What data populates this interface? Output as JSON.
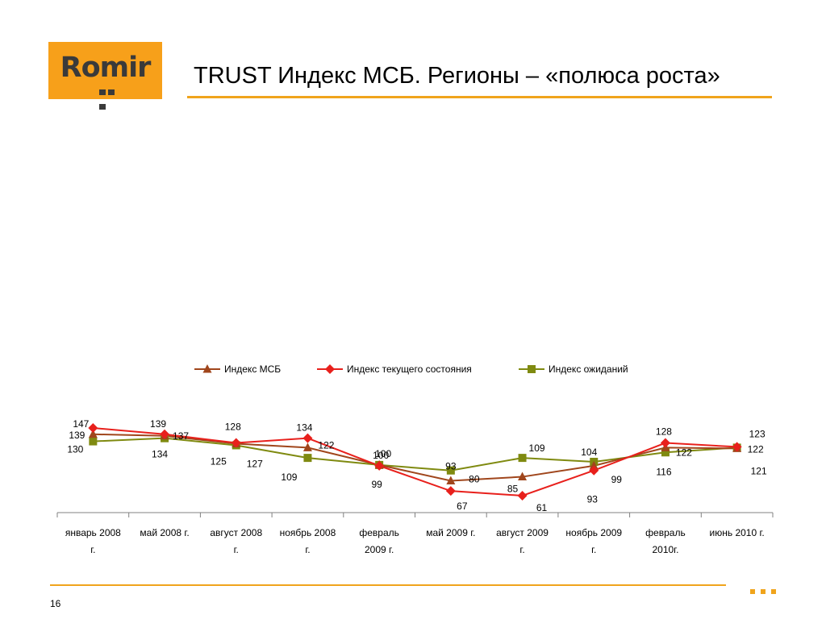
{
  "logo": {
    "text": "Romir"
  },
  "slide": {
    "title": "TRUST Индекс МСБ. Регионы – «полюса роста»",
    "page_number": "16"
  },
  "colors": {
    "accent": "#f0a41c",
    "series_msb": "#a0461c",
    "series_current": "#e8201c",
    "series_expect": "#7f8a10"
  },
  "chart_data": {
    "type": "line",
    "title": "",
    "xlabel": "",
    "ylabel": "",
    "legend_position": "top",
    "grid": false,
    "categories": [
      [
        "январь 2008",
        "г."
      ],
      [
        "май 2008 г."
      ],
      [
        "август 2008",
        "г."
      ],
      [
        "ноябрь 2008",
        "г."
      ],
      [
        "февраль",
        "2009 г."
      ],
      [
        "май 2009 г."
      ],
      [
        "август 2009",
        "г."
      ],
      [
        "ноябрь 2009",
        "г."
      ],
      [
        "февраль",
        "2010г."
      ],
      [
        "июнь 2010 г."
      ]
    ],
    "series": [
      {
        "name": "Индекс МСБ",
        "marker": "triangle",
        "values": [
          139,
          137,
          127,
          122,
          100,
          80,
          85,
          99,
          122,
          121
        ]
      },
      {
        "name": "Индекс текущего состояния",
        "marker": "diamond",
        "values": [
          147,
          139,
          128,
          134,
          99,
          67,
          61,
          93,
          128,
          123
        ]
      },
      {
        "name": "Индекс ожиданий",
        "marker": "square",
        "values": [
          130,
          134,
          125,
          109,
          100,
          93,
          109,
          104,
          116,
          122
        ]
      }
    ]
  }
}
